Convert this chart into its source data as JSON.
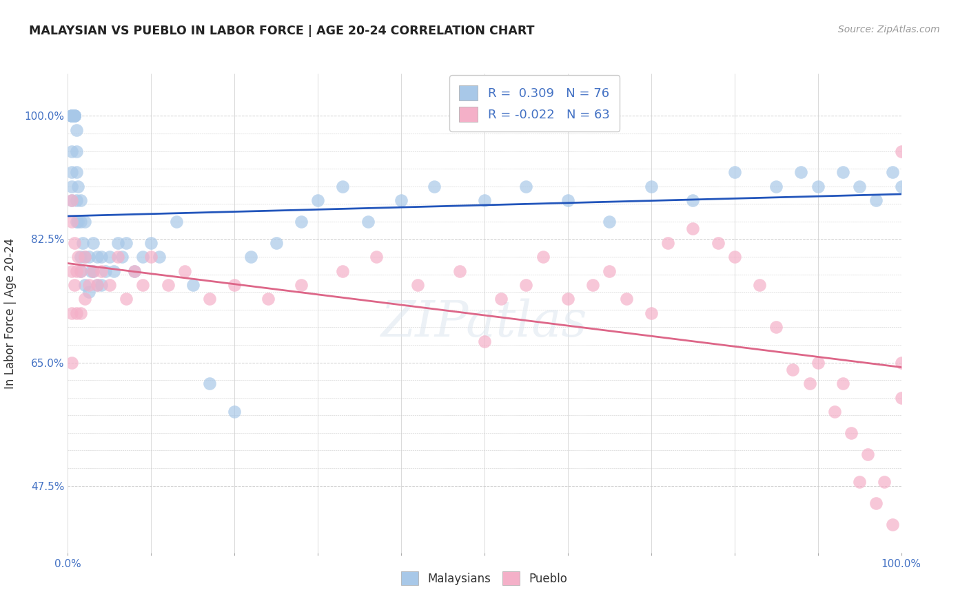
{
  "title": "MALAYSIAN VS PUEBLO IN LABOR FORCE | AGE 20-24 CORRELATION CHART",
  "source": "Source: ZipAtlas.com",
  "ylabel": "In Labor Force | Age 20-24",
  "xlim": [
    0.0,
    1.0
  ],
  "ylim": [
    0.38,
    1.06
  ],
  "r_malaysian": 0.309,
  "n_malaysian": 76,
  "r_pueblo": -0.022,
  "n_pueblo": 63,
  "malaysian_color": "#a8c8e8",
  "pueblo_color": "#f4b0c8",
  "trend_malaysian_color": "#2255bb",
  "trend_pueblo_color": "#dd6688",
  "background_color": "#ffffff",
  "grid_color": "#cccccc",
  "watermark": "ZIPatlas",
  "malaysian_x": [
    0.005,
    0.005,
    0.005,
    0.005,
    0.005,
    0.005,
    0.005,
    0.005,
    0.005,
    0.005,
    0.008,
    0.008,
    0.008,
    0.008,
    0.008,
    0.01,
    0.01,
    0.01,
    0.01,
    0.01,
    0.012,
    0.012,
    0.015,
    0.015,
    0.015,
    0.015,
    0.018,
    0.02,
    0.02,
    0.02,
    0.025,
    0.025,
    0.028,
    0.03,
    0.03,
    0.035,
    0.035,
    0.04,
    0.04,
    0.045,
    0.05,
    0.055,
    0.06,
    0.065,
    0.07,
    0.08,
    0.09,
    0.1,
    0.11,
    0.13,
    0.15,
    0.17,
    0.2,
    0.22,
    0.25,
    0.28,
    0.3,
    0.33,
    0.36,
    0.4,
    0.44,
    0.5,
    0.55,
    0.6,
    0.65,
    0.7,
    0.75,
    0.8,
    0.85,
    0.88,
    0.9,
    0.93,
    0.95,
    0.97,
    0.99,
    1.0
  ],
  "malaysian_y": [
    1.0,
    1.0,
    1.0,
    1.0,
    1.0,
    1.0,
    0.95,
    0.92,
    0.9,
    0.88,
    1.0,
    1.0,
    1.0,
    1.0,
    1.0,
    0.98,
    0.95,
    0.92,
    0.88,
    0.85,
    0.9,
    0.85,
    0.88,
    0.85,
    0.8,
    0.78,
    0.82,
    0.85,
    0.8,
    0.76,
    0.8,
    0.75,
    0.78,
    0.82,
    0.78,
    0.8,
    0.76,
    0.8,
    0.76,
    0.78,
    0.8,
    0.78,
    0.82,
    0.8,
    0.82,
    0.78,
    0.8,
    0.82,
    0.8,
    0.85,
    0.76,
    0.62,
    0.58,
    0.8,
    0.82,
    0.85,
    0.88,
    0.9,
    0.85,
    0.88,
    0.9,
    0.88,
    0.9,
    0.88,
    0.85,
    0.9,
    0.88,
    0.92,
    0.9,
    0.92,
    0.9,
    0.92,
    0.9,
    0.88,
    0.92,
    0.9
  ],
  "pueblo_x": [
    0.005,
    0.005,
    0.005,
    0.005,
    0.005,
    0.008,
    0.008,
    0.01,
    0.01,
    0.012,
    0.015,
    0.015,
    0.02,
    0.02,
    0.025,
    0.03,
    0.035,
    0.04,
    0.05,
    0.06,
    0.07,
    0.08,
    0.09,
    0.1,
    0.12,
    0.14,
    0.17,
    0.2,
    0.24,
    0.28,
    0.33,
    0.37,
    0.42,
    0.47,
    0.5,
    0.52,
    0.55,
    0.57,
    0.6,
    0.63,
    0.65,
    0.67,
    0.7,
    0.72,
    0.75,
    0.78,
    0.8,
    0.83,
    0.85,
    0.87,
    0.89,
    0.9,
    0.92,
    0.93,
    0.94,
    0.95,
    0.96,
    0.97,
    0.98,
    0.99,
    1.0,
    1.0,
    1.0
  ],
  "pueblo_y": [
    0.88,
    0.85,
    0.78,
    0.72,
    0.65,
    0.82,
    0.76,
    0.78,
    0.72,
    0.8,
    0.78,
    0.72,
    0.8,
    0.74,
    0.76,
    0.78,
    0.76,
    0.78,
    0.76,
    0.8,
    0.74,
    0.78,
    0.76,
    0.8,
    0.76,
    0.78,
    0.74,
    0.76,
    0.74,
    0.76,
    0.78,
    0.8,
    0.76,
    0.78,
    0.68,
    0.74,
    0.76,
    0.8,
    0.74,
    0.76,
    0.78,
    0.74,
    0.72,
    0.82,
    0.84,
    0.82,
    0.8,
    0.76,
    0.7,
    0.64,
    0.62,
    0.65,
    0.58,
    0.62,
    0.55,
    0.48,
    0.52,
    0.45,
    0.48,
    0.42,
    0.95,
    0.65,
    0.6
  ]
}
